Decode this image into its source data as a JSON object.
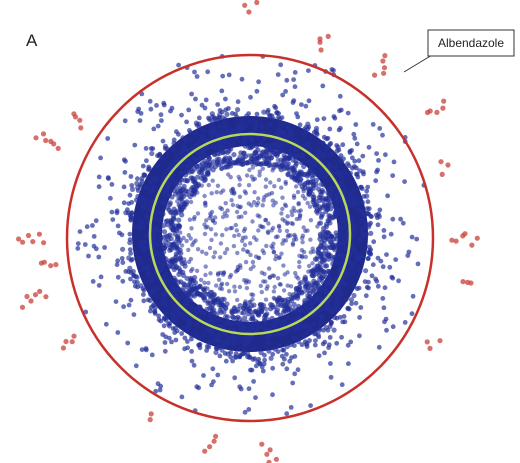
{
  "panel_label": "A",
  "annotation": "Albendazole"
}
